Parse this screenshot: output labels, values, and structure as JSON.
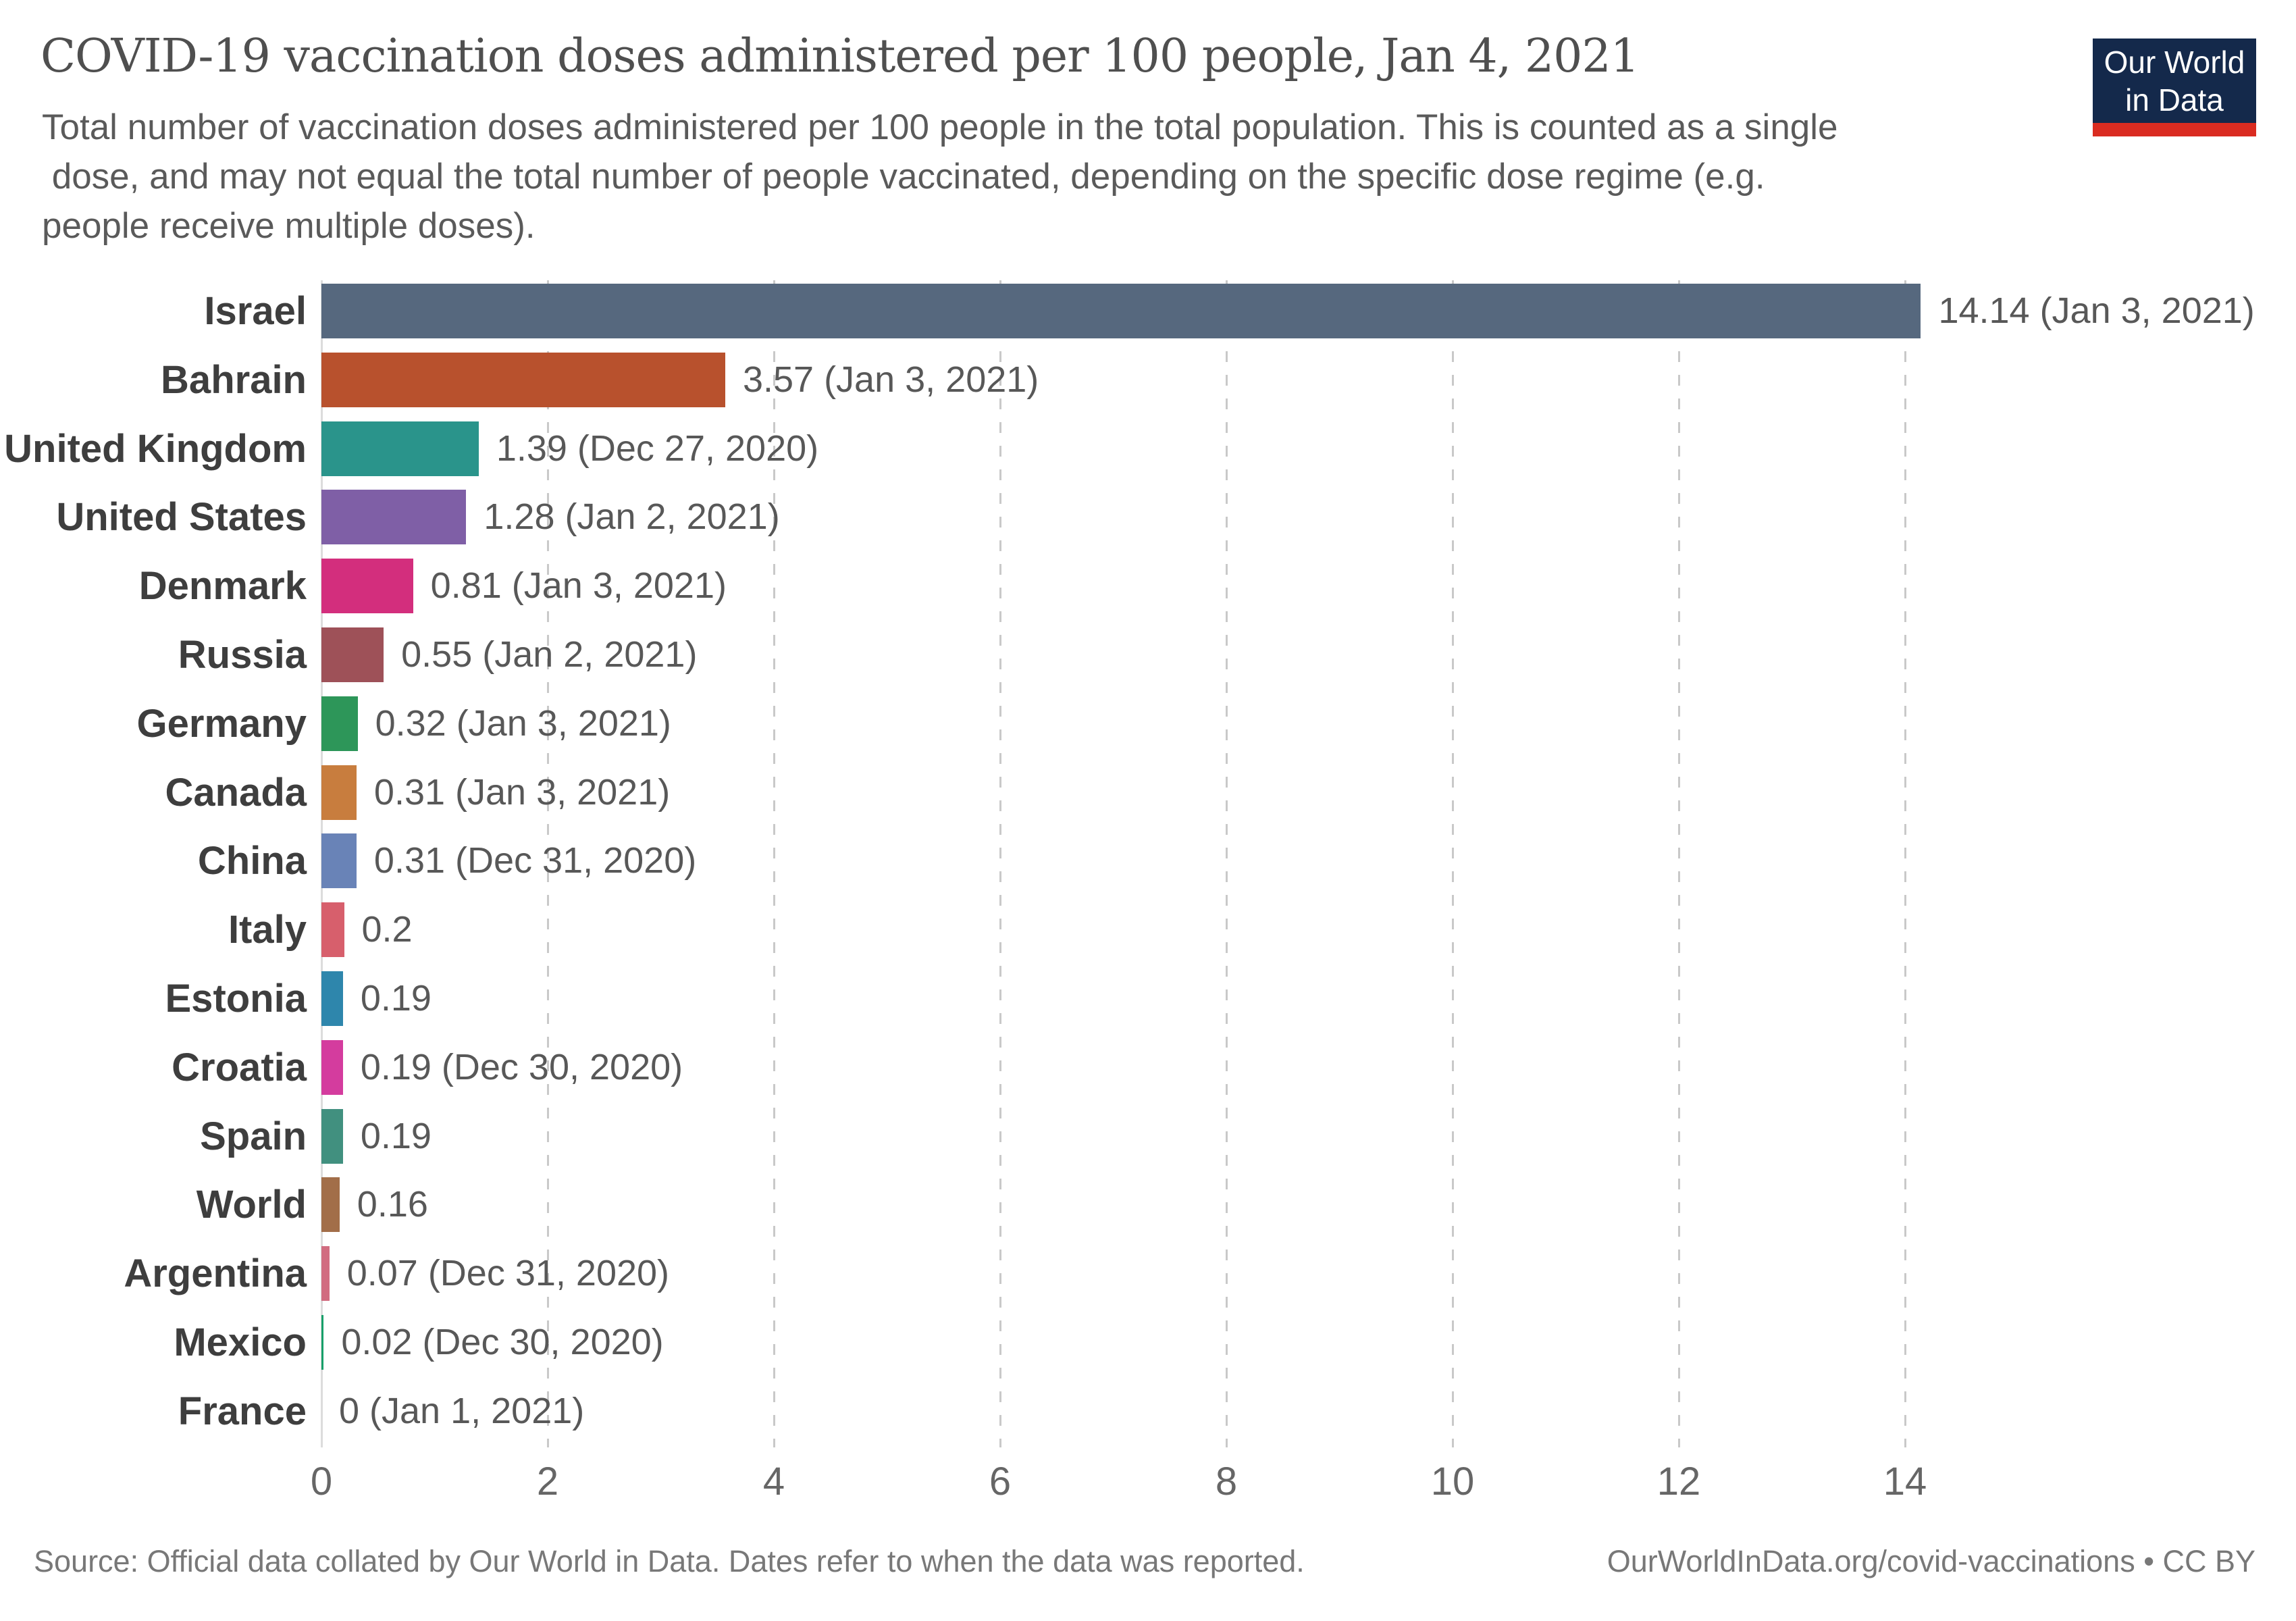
{
  "header": {
    "title": "COVID-19 vaccination doses administered per 100 people, Jan 4, 2021",
    "subtitle": "Total number of vaccination doses administered per 100 people in the total population. This is counted as a single\n dose, and may not equal the total number of people vaccinated, depending on the specific dose regime (e.g.\npeople receive multiple doses)."
  },
  "logo": {
    "line1": "Our World",
    "line2": "in Data",
    "bg_color": "#14294B",
    "stripe_color": "#DA2C21",
    "text_color": "#FFFFFF"
  },
  "chart_data": {
    "type": "bar",
    "orientation": "horizontal",
    "title": "COVID-19 vaccination doses administered per 100 people, Jan 4, 2021",
    "xlabel": "",
    "ylabel": "",
    "xlim": [
      0,
      17
    ],
    "ticks": [
      0,
      2,
      4,
      6,
      8,
      10,
      12,
      14
    ],
    "grid": "dashed-vertical",
    "series": [
      {
        "label": "Israel",
        "value": 14.14,
        "value_label": "14.14 (Jan 3, 2021)",
        "color": "#56687E"
      },
      {
        "label": "Bahrain",
        "value": 3.57,
        "value_label": "3.57 (Jan 3, 2021)",
        "color": "#B8512D"
      },
      {
        "label": "United Kingdom",
        "value": 1.39,
        "value_label": "1.39 (Dec 27, 2020)",
        "color": "#2A948B"
      },
      {
        "label": "United States",
        "value": 1.28,
        "value_label": "1.28 (Jan 2, 2021)",
        "color": "#7F5FA6"
      },
      {
        "label": "Denmark",
        "value": 0.81,
        "value_label": "0.81 (Jan 3, 2021)",
        "color": "#D32E7D"
      },
      {
        "label": "Russia",
        "value": 0.55,
        "value_label": "0.55 (Jan 2, 2021)",
        "color": "#9E5158"
      },
      {
        "label": "Germany",
        "value": 0.32,
        "value_label": "0.32 (Jan 3, 2021)",
        "color": "#2D9659"
      },
      {
        "label": "Canada",
        "value": 0.31,
        "value_label": "0.31 (Jan 3, 2021)",
        "color": "#C87D3E"
      },
      {
        "label": "China",
        "value": 0.31,
        "value_label": "0.31 (Dec 31, 2020)",
        "color": "#6983B7"
      },
      {
        "label": "Italy",
        "value": 0.2,
        "value_label": "0.2",
        "color": "#D75F6C"
      },
      {
        "label": "Estonia",
        "value": 0.19,
        "value_label": "0.19",
        "color": "#2E86AC"
      },
      {
        "label": "Croatia",
        "value": 0.19,
        "value_label": "0.19 (Dec 30, 2020)",
        "color": "#D43C9E"
      },
      {
        "label": "Spain",
        "value": 0.19,
        "value_label": "0.19",
        "color": "#41907F"
      },
      {
        "label": "World",
        "value": 0.16,
        "value_label": "0.16",
        "color": "#A26E49"
      },
      {
        "label": "Argentina",
        "value": 0.07,
        "value_label": "0.07 (Dec 31, 2020)",
        "color": "#D16C80"
      },
      {
        "label": "Mexico",
        "value": 0.02,
        "value_label": "0.02 (Dec 30, 2020)",
        "color": "#18A06A"
      },
      {
        "label": "France",
        "value": 0,
        "value_label": "0 (Jan 1, 2021)",
        "color": "#3D8E86"
      }
    ]
  },
  "footer": {
    "source": "Source: Official data collated by Our World in Data. Dates refer to when the data was reported.",
    "link": "OurWorldInData.org/covid-vaccinations • CC BY"
  }
}
